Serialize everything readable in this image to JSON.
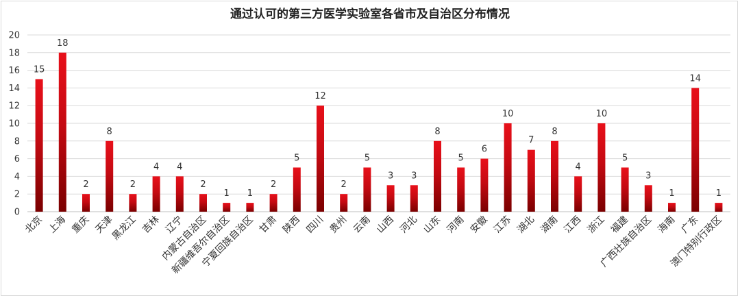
{
  "chart_data": {
    "type": "bar",
    "title": "通过认可的第三方医学实验室各省市及自治区分布情况",
    "xlabel": "",
    "ylabel": "",
    "ylim": [
      0,
      20
    ],
    "ytick_step": 2,
    "grid": true,
    "legend": "none",
    "bar_color_top": "#e8101a",
    "bar_color_bottom": "#7a0000",
    "categories": [
      "北京",
      "上海",
      "重庆",
      "天津",
      "黑龙江",
      "吉林",
      "辽宁",
      "内蒙古自治区",
      "新疆维吾尔自治区",
      "宁夏回族自治区",
      "甘肃",
      "陕西",
      "四川",
      "贵州",
      "云南",
      "山西",
      "河北",
      "山东",
      "河南",
      "安徽",
      "江苏",
      "湖北",
      "湖南",
      "江西",
      "浙江",
      "福建",
      "广西壮族自治区",
      "海南",
      "广东",
      "澳门特别行政区"
    ],
    "values": [
      15,
      18,
      2,
      8,
      2,
      4,
      4,
      2,
      1,
      1,
      2,
      5,
      12,
      2,
      5,
      3,
      3,
      8,
      5,
      6,
      10,
      7,
      8,
      4,
      10,
      5,
      3,
      1,
      14,
      1
    ]
  }
}
